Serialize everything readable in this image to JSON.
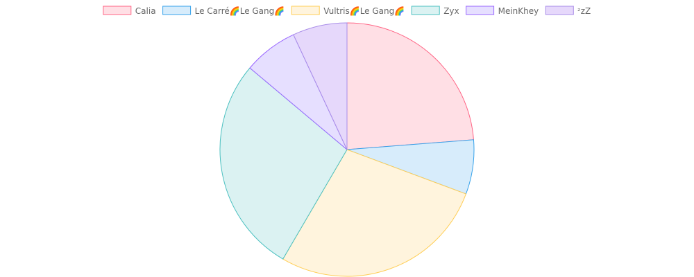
{
  "chart_data": {
    "type": "pie",
    "title": "",
    "legend_position": "top",
    "grid": false,
    "labels": [
      "Calia",
      "Le Carré🌈Le Gang🌈",
      "Vultris🌈Le Gang🌈",
      "Zyx",
      "MeinKhey",
      "ᶻzZ"
    ],
    "values": [
      24,
      7,
      28,
      28,
      7,
      7
    ],
    "colors": [
      {
        "fill": "#ffdfe5",
        "stroke": "#ff6384"
      },
      {
        "fill": "#d7ecfb",
        "stroke": "#36a2eb"
      },
      {
        "fill": "#fff4dd",
        "stroke": "#ffce56"
      },
      {
        "fill": "#dbf2f2",
        "stroke": "#4bc0c0"
      },
      {
        "fill": "#e6dfff",
        "stroke": "#9966ff"
      },
      {
        "fill": "#e6d8fb",
        "stroke": "#a88ce8"
      }
    ]
  }
}
